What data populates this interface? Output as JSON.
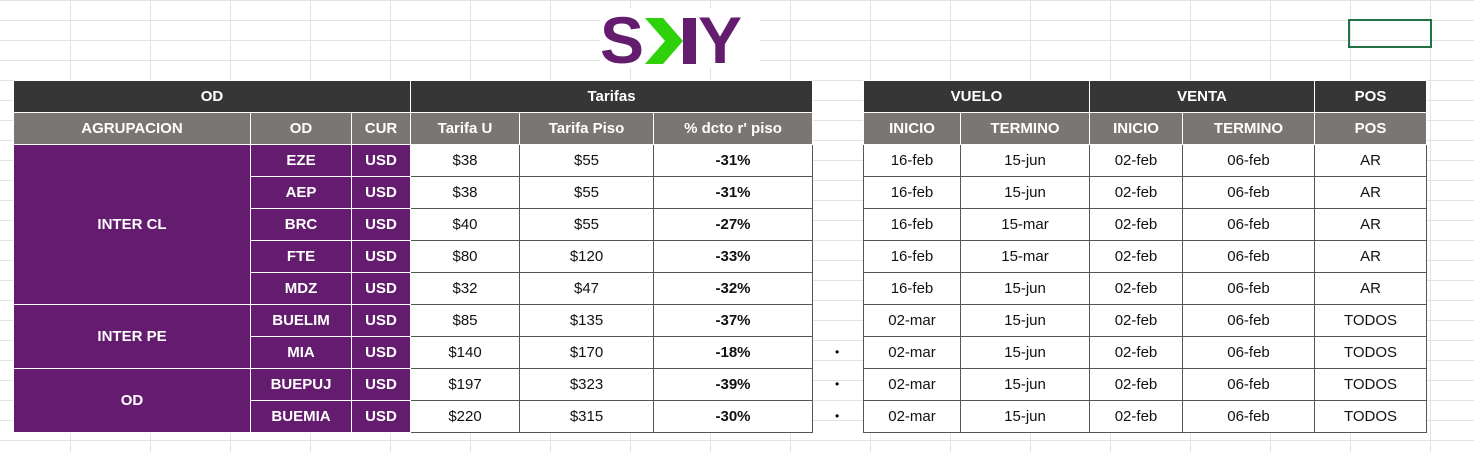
{
  "logo": {
    "text": "SKY",
    "colors": {
      "purple": "#641c6e",
      "green": "#2ed10a"
    }
  },
  "left": {
    "group_header": [
      "OD",
      "Tarifas"
    ],
    "columns": [
      "AGRUPACION",
      "OD",
      "CUR",
      "Tarifa U",
      "Tarifa Piso",
      "% dcto r' piso"
    ],
    "groups": [
      "INTER CL",
      "INTER PE",
      "OD"
    ],
    "rows": [
      [
        "EZE",
        "USD",
        "$38",
        "$55",
        "-31%"
      ],
      [
        "AEP",
        "USD",
        "$38",
        "$55",
        "-31%"
      ],
      [
        "BRC",
        "USD",
        "$40",
        "$55",
        "-27%"
      ],
      [
        "FTE",
        "USD",
        "$80",
        "$120",
        "-33%"
      ],
      [
        "MDZ",
        "USD",
        "$32",
        "$47",
        "-32%"
      ],
      [
        "BUELIM",
        "USD",
        "$85",
        "$135",
        "-37%"
      ],
      [
        "MIA",
        "USD",
        "$140",
        "$170",
        "-18%"
      ],
      [
        "BUEPUJ",
        "USD",
        "$197",
        "$323",
        "-39%"
      ],
      [
        "BUEMIA",
        "USD",
        "$220",
        "$315",
        "-30%"
      ]
    ]
  },
  "right": {
    "group_header": [
      "VUELO",
      "VENTA",
      "POS"
    ],
    "columns": [
      "INICIO",
      "TERMINO",
      "INICIO",
      "TERMINO",
      "POS"
    ],
    "rows": [
      [
        "16-feb",
        "15-jun",
        "02-feb",
        "06-feb",
        "AR"
      ],
      [
        "16-feb",
        "15-jun",
        "02-feb",
        "06-feb",
        "AR"
      ],
      [
        "16-feb",
        "15-mar",
        "02-feb",
        "06-feb",
        "AR"
      ],
      [
        "16-feb",
        "15-mar",
        "02-feb",
        "06-feb",
        "AR"
      ],
      [
        "16-feb",
        "15-jun",
        "02-feb",
        "06-feb",
        "AR"
      ],
      [
        "02-mar",
        "15-jun",
        "02-feb",
        "06-feb",
        "TODOS"
      ],
      [
        "02-mar",
        "15-jun",
        "02-feb",
        "06-feb",
        "TODOS"
      ],
      [
        "02-mar",
        "15-jun",
        "02-feb",
        "06-feb",
        "TODOS"
      ],
      [
        "02-mar",
        "15-jun",
        "02-feb",
        "06-feb",
        "TODOS"
      ]
    ]
  },
  "bullet": "•"
}
